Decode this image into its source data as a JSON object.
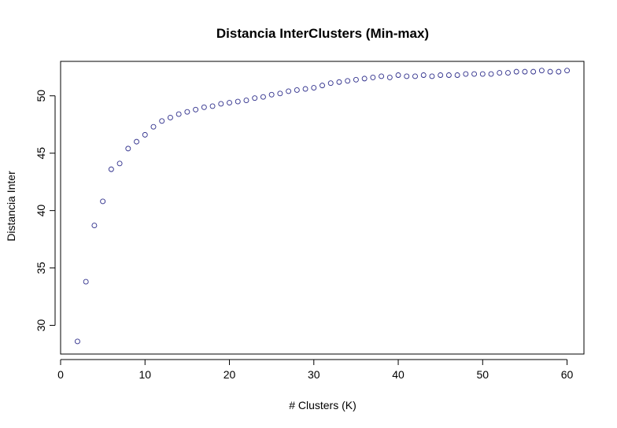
{
  "chart_data": {
    "type": "scatter",
    "title": "Distancia InterClusters (Min-max)",
    "xlabel": "# Clusters (K)",
    "ylabel": "Distancia Inter",
    "xlim": [
      0,
      62
    ],
    "ylim": [
      27.5,
      53
    ],
    "x_ticks": [
      0,
      10,
      20,
      30,
      40,
      50,
      60
    ],
    "y_ticks": [
      30,
      35,
      40,
      45,
      50
    ],
    "grid": false,
    "marker": "open-circle",
    "color": "#2e2e8b",
    "series": [
      {
        "x": [
          2,
          3,
          4,
          5,
          6,
          7,
          8,
          9,
          10,
          11,
          12,
          13,
          14,
          15,
          16,
          17,
          18,
          19,
          20,
          21,
          22,
          23,
          24,
          25,
          26,
          27,
          28,
          29,
          30,
          31,
          32,
          33,
          34,
          35,
          36,
          37,
          38,
          39,
          40,
          41,
          42,
          43,
          44,
          45,
          46,
          47,
          48,
          49,
          50,
          51,
          52,
          53,
          54,
          55,
          56,
          57,
          58,
          59,
          60
        ],
        "values": [
          28.6,
          33.8,
          38.7,
          40.8,
          43.6,
          44.1,
          45.4,
          46.0,
          46.6,
          47.3,
          47.8,
          48.1,
          48.4,
          48.6,
          48.8,
          49.0,
          49.1,
          49.3,
          49.4,
          49.5,
          49.6,
          49.8,
          49.9,
          50.1,
          50.2,
          50.4,
          50.5,
          50.6,
          50.7,
          50.9,
          51.1,
          51.2,
          51.3,
          51.4,
          51.5,
          51.6,
          51.7,
          51.6,
          51.8,
          51.7,
          51.7,
          51.8,
          51.7,
          51.8,
          51.8,
          51.8,
          51.9,
          51.9,
          51.9,
          51.9,
          52.0,
          52.0,
          52.1,
          52.1,
          52.1,
          52.2,
          52.1,
          52.1,
          52.2
        ]
      }
    ]
  }
}
